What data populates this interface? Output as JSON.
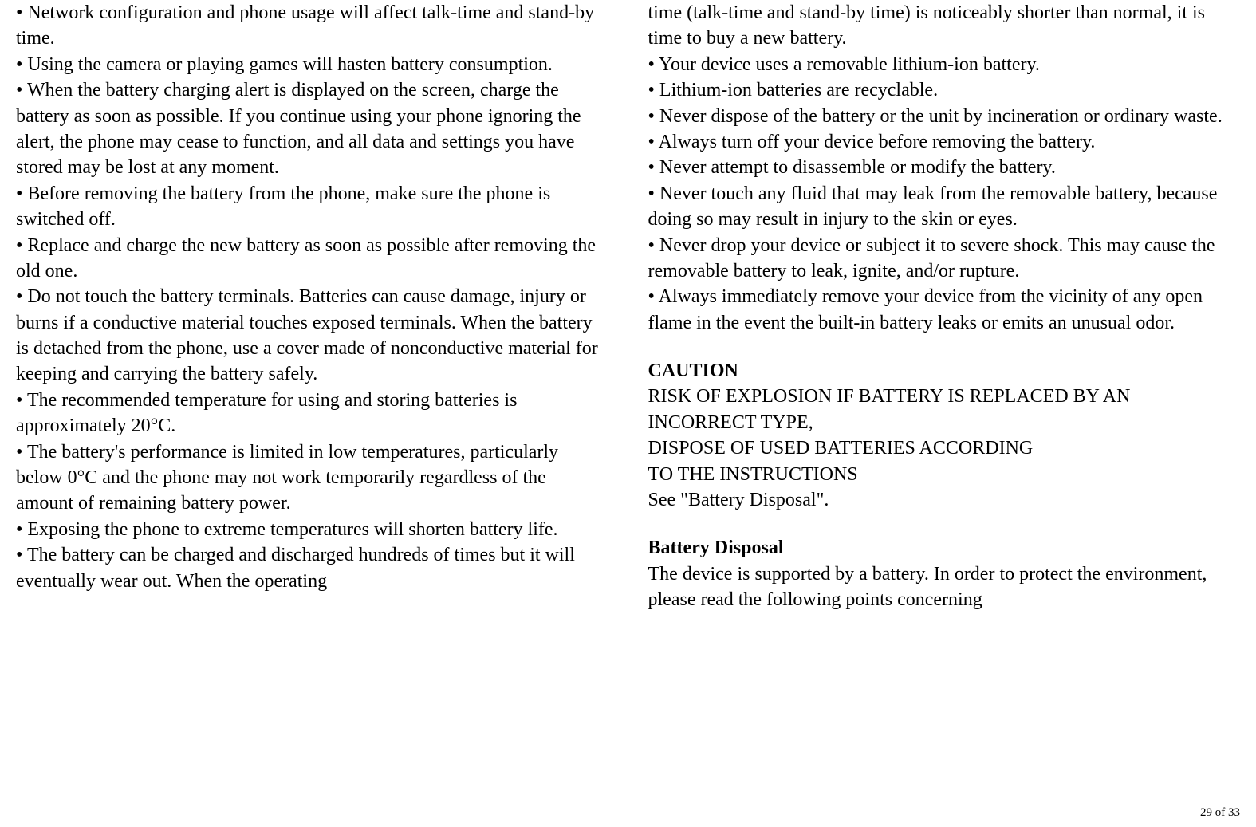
{
  "left_column": {
    "items": [
      "• Network configuration and phone usage will affect talk-time and stand-by time.",
      "• Using the camera or playing games will hasten battery consumption.",
      "• When the battery charging alert is displayed on the screen, charge the battery as soon as possible. If you continue using your phone ignoring the alert, the phone may cease to function, and all data and settings you have stored may be lost at any moment.",
      "• Before removing the battery from the phone, make sure the phone is switched off.",
      "• Replace and charge the new battery as soon as possible after removing the old one.",
      "• Do not touch the battery terminals. Batteries can cause damage, injury or burns if a conductive material touches exposed terminals. When the battery is detached from the phone, use a cover made of nonconductive material for keeping and carrying the battery safely.",
      "• The recommended temperature for using and storing batteries is approximately 20°C.",
      "• The battery's performance is limited in low temperatures, particularly below 0°C and the phone may not work temporarily regardless of the amount of remaining battery power.",
      "• Exposing the phone to extreme temperatures will shorten battery life.",
      "• The battery can be charged and discharged hundreds of times but it will eventually wear out. When the operating"
    ]
  },
  "right_column": {
    "continuation": "time (talk-time and stand-by time) is noticeably shorter than normal, it is time to buy a new battery.",
    "items": [
      "• Your device uses a removable lithium-ion battery.",
      "• Lithium-ion batteries are recyclable.",
      "• Never dispose of the battery or the unit by incineration or ordinary waste.",
      "• Always turn off your device before removing the battery.",
      "• Never attempt to disassemble or modify the battery.",
      "• Never touch any fluid that may leak from the removable battery, because doing so may result in injury to the skin or eyes.",
      "• Never drop your device or subject it to severe shock. This may cause the removable battery to leak, ignite, and/or rupture.",
      "• Always immediately remove your device from the vicinity of any open flame in the event the built-in battery leaks or emits an unusual odor."
    ],
    "caution_heading": "CAUTION",
    "caution_text": [
      "RISK OF EXPLOSION IF BATTERY IS REPLACED BY AN INCORRECT TYPE,",
      "DISPOSE OF USED BATTERIES ACCORDING",
      "TO THE INSTRUCTIONS",
      "See \"Battery Disposal\"."
    ],
    "disposal_heading": "Battery Disposal",
    "disposal_text": "The device is supported by a battery. In order to protect the environment, please read the following points concerning"
  },
  "page_number": "29 of 33"
}
